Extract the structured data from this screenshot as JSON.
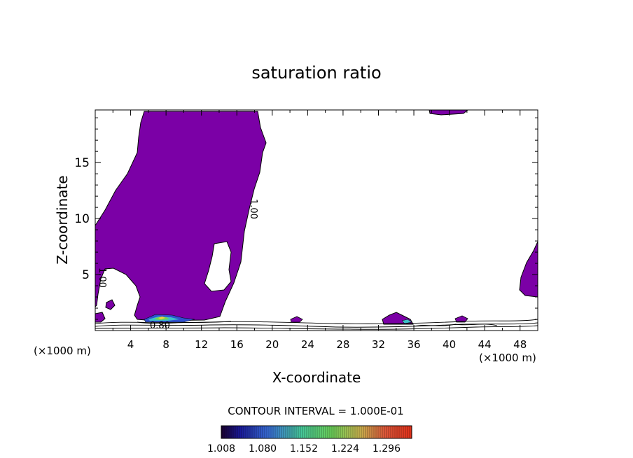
{
  "chart_data": {
    "type": "contour",
    "title": "saturation ratio",
    "xlabel": "X-coordinate",
    "ylabel": "Z-coordinate",
    "x_unit_left": "(×1000 m)",
    "x_unit_right": "(×1000 m)",
    "xlim": [
      0,
      50
    ],
    "ylim": [
      0,
      19.7
    ],
    "x_ticks": [
      4,
      8,
      12,
      16,
      20,
      24,
      28,
      32,
      36,
      40,
      44,
      48
    ],
    "y_ticks": [
      5,
      10,
      15
    ],
    "contour_labels": [
      {
        "text": "1.00",
        "x": 18,
        "y": 10.3
      },
      {
        "text": "1.00",
        "x": 1.2,
        "y": 4.7
      },
      {
        "text": "0.80",
        "x": 7.8,
        "y": 0.55
      }
    ],
    "contour_interval_text": "CONTOUR INTERVAL = 1.000E-01",
    "fill_color": "#7b00a6",
    "colorbar": {
      "labels": [
        "1.008",
        "1.080",
        "1.152",
        "1.224",
        "1.296"
      ],
      "min": 1.008,
      "max": 1.34
    }
  }
}
